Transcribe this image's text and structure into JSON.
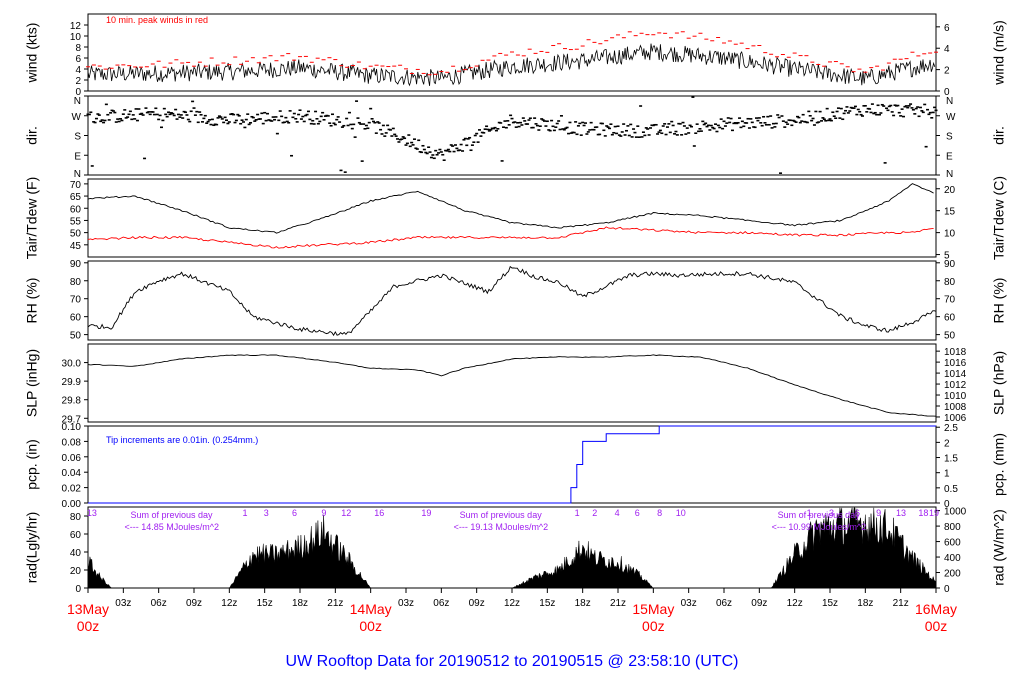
{
  "chart_data": {
    "type": "line",
    "title": "UW Rooftop Data for 20190512  to  20190515 @ 23:58:10  (UTC)",
    "colors": {
      "primary": "#000000",
      "dewpoint": "#ff0000",
      "peak": "#ff0000",
      "precip": "#0000ff",
      "annotation": "#a020f0",
      "day_label": "#ff0000",
      "title": "#0000ff"
    },
    "x_axis": {
      "hour_ticks": [
        "03z",
        "06z",
        "09z",
        "12z",
        "15z",
        "18z",
        "21z",
        "03z",
        "06z",
        "09z",
        "12z",
        "15z",
        "18z",
        "21z",
        "03z",
        "06z",
        "09z",
        "12z",
        "15z",
        "18z",
        "21z"
      ],
      "day_labels": [
        {
          "date": "13May",
          "hour": "00z"
        },
        {
          "date": "14May",
          "hour": "00z"
        },
        {
          "date": "15May",
          "hour": "00z"
        },
        {
          "date": "16May",
          "hour": "00z"
        }
      ]
    },
    "panels": [
      {
        "id": "wind",
        "ylabel": "wind (kts)",
        "ylabel_right": "wind (m/s)",
        "ylim": [
          0,
          14
        ],
        "yticks": [
          0,
          2,
          4,
          6,
          8,
          10,
          12
        ],
        "right_ylim": [
          0,
          7.2
        ],
        "right_yticks": [
          0,
          2,
          4,
          6
        ],
        "annotation": "10 min. peak winds in red",
        "series": [
          {
            "name": "wind",
            "x": [
              0,
              6,
              12,
              18,
              24,
              30,
              36,
              42,
              48,
              54,
              60,
              66,
              72
            ],
            "y": [
              3,
              3.2,
              3.5,
              4.2,
              2.8,
              2.3,
              4.5,
              5.5,
              7.2,
              6,
              4,
              2.2,
              5.2
            ]
          },
          {
            "name": "peak",
            "x": [
              0,
              6,
              12,
              18,
              24,
              30,
              36,
              42,
              48,
              54,
              60,
              66,
              72
            ],
            "y": [
              4.4,
              4.8,
              5.5,
              6.3,
              4.4,
              3.6,
              6.8,
              8.5,
              10.8,
              9.2,
              6.2,
              3.5,
              7.8
            ]
          }
        ]
      },
      {
        "id": "dir",
        "ylabel": "dir.",
        "ylabel_right": "dir.",
        "yticks": [
          "N",
          "E",
          "S",
          "W",
          "N"
        ],
        "series": [
          {
            "name": "dir",
            "x": [
              0,
              6,
              12,
              18,
              24,
              30,
              36,
              42,
              48,
              54,
              60,
              66,
              72
            ],
            "y": [
              260,
              280,
              250,
              270,
              230,
              90,
              250,
              210,
              200,
              230,
              250,
              300,
              290
            ]
          }
        ]
      },
      {
        "id": "temp",
        "ylabel": "Tair/Tdew (F)",
        "ylabel_right": "Tair/Tdew (C)",
        "ylim": [
          40,
          72
        ],
        "yticks": [
          45,
          50,
          55,
          60,
          65,
          70
        ],
        "right_yticks": [
          5,
          10,
          15,
          20
        ],
        "series": [
          {
            "name": "Tair",
            "x": [
              0,
              4,
              8,
              12,
              16,
              20,
              24,
              28,
              32,
              36,
              40,
              44,
              48,
              52,
              56,
              60,
              64,
              68,
              70,
              72
            ],
            "y": [
              64,
              65,
              59,
              52,
              50,
              56,
              63,
              67,
              59,
              54,
              52,
              54,
              58,
              57,
              55,
              53,
              55,
              63,
              70,
              66
            ]
          },
          {
            "name": "Tdew",
            "x": [
              0,
              4,
              8,
              12,
              16,
              20,
              24,
              28,
              32,
              36,
              40,
              44,
              48,
              52,
              56,
              60,
              64,
              68,
              70,
              72
            ],
            "y": [
              47,
              48,
              48,
              46,
              44,
              45,
              46,
              48,
              48,
              48,
              48,
              52,
              51,
              50,
              50,
              49,
              49,
              50,
              50,
              52
            ]
          }
        ]
      },
      {
        "id": "rh",
        "ylabel": "RH (%)",
        "ylabel_right": "RH (%)",
        "ylim": [
          47,
          91
        ],
        "yticks": [
          50,
          60,
          70,
          80,
          90
        ],
        "right_yticks": [
          50,
          60,
          70,
          80,
          90
        ],
        "series": [
          {
            "name": "RH",
            "x": [
              0,
              2,
              4,
              6,
              8,
              12,
              14,
              18,
              22,
              24,
              26,
              30,
              34,
              36,
              38,
              40,
              42,
              44,
              46,
              48,
              50,
              54,
              56,
              60,
              64,
              66,
              68,
              70,
              72
            ],
            "y": [
              55,
              54,
              74,
              80,
              84,
              74,
              60,
              53,
              50,
              63,
              77,
              83,
              74,
              88,
              82,
              79,
              71,
              77,
              83,
              84,
              83,
              84,
              84,
              79,
              60,
              55,
              52,
              57,
              63
            ]
          }
        ]
      },
      {
        "id": "slp",
        "ylabel": "SLP (inHg)",
        "ylabel_right": "SLP (hPa)",
        "ylim": [
          29.68,
          30.1
        ],
        "yticks": [
          29.7,
          29.8,
          29.9,
          30.0
        ],
        "right_yticks": [
          1006,
          1008,
          1010,
          1012,
          1014,
          1016,
          1018
        ],
        "series": [
          {
            "name": "SLP",
            "x": [
              0,
              4,
              8,
              12,
              16,
              20,
              24,
              28,
              30,
              32,
              36,
              40,
              44,
              48,
              52,
              56,
              60,
              64,
              68,
              72
            ],
            "y": [
              29.99,
              29.98,
              30.02,
              30.04,
              30.04,
              30.01,
              29.97,
              29.96,
              29.93,
              29.97,
              30.02,
              30.03,
              30.03,
              30.04,
              30.03,
              29.97,
              29.88,
              29.8,
              29.73,
              29.71
            ]
          }
        ]
      },
      {
        "id": "pcp",
        "ylabel": "pcp. (in)",
        "ylabel_right": "pcp. (mm)",
        "ylim": [
          0,
          0.1
        ],
        "yticks": [
          0.0,
          0.02,
          0.04,
          0.06,
          0.08,
          0.1
        ],
        "right_yticks": [
          0,
          0.5,
          1,
          1.5,
          2,
          2.5
        ],
        "annotation": "Tip increments are 0.01in. (0.254mm.)",
        "series": [
          {
            "name": "pcp",
            "x": [
              0,
              40.5,
              41,
              41.5,
              42,
              42.5,
              44,
              48.5,
              72
            ],
            "y": [
              0,
              0,
              0.02,
              0.05,
              0.08,
              0.08,
              0.09,
              0.1,
              0.1
            ]
          }
        ]
      },
      {
        "id": "rad",
        "ylabel": "rad(Lgly/hr)",
        "ylabel_right": "rad (W/m^2)",
        "ylim": [
          0,
          90
        ],
        "yticks": [
          0,
          20,
          40,
          60,
          80
        ],
        "right_yticks": [
          0,
          200,
          400,
          600,
          800,
          1000
        ],
        "annotations": [
          {
            "line1": "Sum of previous day",
            "line2": "<--- 14.85 MJoules/m^2"
          },
          {
            "line1": "Sum of previous day",
            "line2": "<--- 19.13 MJoules/m^2"
          },
          {
            "line1": "Sum of previous day",
            "line2": "<--- 10.99 MJoules/m^2"
          }
        ],
        "hour_marks": [
          "13",
          "1",
          "3",
          "6",
          "9",
          "12",
          "16",
          "19",
          "1",
          "2",
          "4",
          "6",
          "8",
          "10",
          "1",
          "3",
          "6",
          "9",
          "13",
          "18",
          "19"
        ],
        "series": [
          {
            "name": "rad",
            "x": [
              0,
              1,
              2,
              12,
              14,
              16,
              18,
              20,
              22,
              24,
              36,
              38,
              40,
              42,
              43,
              45,
              47,
              48,
              58,
              60,
              62,
              64,
              66,
              68,
              70,
              72
            ],
            "y": [
              36,
              15,
              0,
              0,
              45,
              45,
              55,
              75,
              40,
              0,
              0,
              15,
              25,
              55,
              40,
              35,
              15,
              0,
              0,
              45,
              80,
              85,
              88,
              80,
              40,
              8
            ]
          }
        ]
      }
    ]
  }
}
